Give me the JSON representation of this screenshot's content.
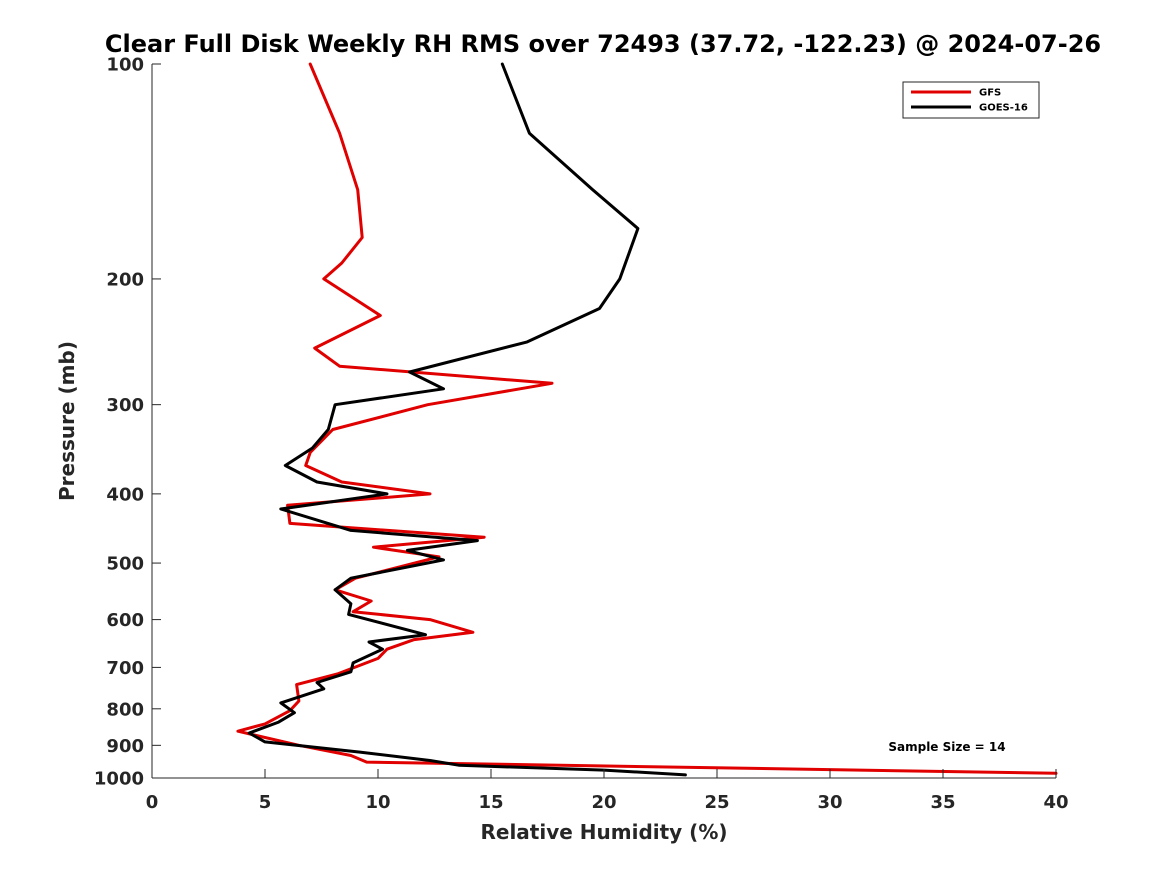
{
  "chart_data": {
    "type": "line",
    "title": "Clear Full Disk Weekly RH RMS over 72493 (37.72, -122.23) @ 2024-07-26",
    "xlabel": "Relative Humidity (%)",
    "ylabel": "Pressure (mb)",
    "xlim": [
      0,
      40
    ],
    "ylim": [
      100,
      1000
    ],
    "y_scale": "log",
    "y_reversed": true,
    "x_ticks": [
      0,
      5,
      10,
      15,
      20,
      25,
      30,
      35,
      40
    ],
    "y_ticks": [
      100,
      200,
      300,
      400,
      500,
      600,
      700,
      800,
      900,
      1000
    ],
    "grid": false,
    "legend_position": "top-right",
    "annotation": "Sample Size = 14",
    "series": [
      {
        "name": "GFS",
        "color": "#e00000",
        "points": [
          [
            7.0,
            100
          ],
          [
            8.3,
            125
          ],
          [
            9.1,
            150
          ],
          [
            9.3,
            175
          ],
          [
            8.4,
            190
          ],
          [
            7.6,
            200
          ],
          [
            10.1,
            225
          ],
          [
            7.2,
            250
          ],
          [
            8.3,
            265
          ],
          [
            17.7,
            280
          ],
          [
            12.2,
            300
          ],
          [
            8.0,
            325
          ],
          [
            7.0,
            350
          ],
          [
            6.8,
            365
          ],
          [
            8.4,
            385
          ],
          [
            12.3,
            400
          ],
          [
            6.0,
            415
          ],
          [
            6.1,
            440
          ],
          [
            14.7,
            460
          ],
          [
            9.8,
            475
          ],
          [
            12.7,
            490
          ],
          [
            9.0,
            525
          ],
          [
            8.1,
            545
          ],
          [
            9.7,
            565
          ],
          [
            8.9,
            585
          ],
          [
            12.3,
            600
          ],
          [
            14.2,
            625
          ],
          [
            11.6,
            640
          ],
          [
            10.4,
            660
          ],
          [
            10.0,
            680
          ],
          [
            8.2,
            715
          ],
          [
            6.4,
            740
          ],
          [
            6.5,
            780
          ],
          [
            6.1,
            805
          ],
          [
            5.0,
            840
          ],
          [
            3.8,
            860
          ],
          [
            6.5,
            900
          ],
          [
            8.8,
            930
          ],
          [
            9.5,
            950
          ],
          [
            40.0,
            985
          ]
        ]
      },
      {
        "name": "GOES-16",
        "color": "#000000",
        "points": [
          [
            15.5,
            100
          ],
          [
            16.7,
            125
          ],
          [
            19.5,
            150
          ],
          [
            21.5,
            170
          ],
          [
            20.7,
            200
          ],
          [
            19.8,
            220
          ],
          [
            16.6,
            245
          ],
          [
            11.4,
            270
          ],
          [
            12.9,
            285
          ],
          [
            8.1,
            300
          ],
          [
            7.8,
            325
          ],
          [
            7.1,
            345
          ],
          [
            5.9,
            365
          ],
          [
            7.3,
            385
          ],
          [
            10.4,
            400
          ],
          [
            5.7,
            420
          ],
          [
            8.8,
            450
          ],
          [
            14.4,
            465
          ],
          [
            11.3,
            480
          ],
          [
            12.9,
            495
          ],
          [
            8.8,
            525
          ],
          [
            8.1,
            545
          ],
          [
            8.8,
            570
          ],
          [
            8.7,
            590
          ],
          [
            12.1,
            630
          ],
          [
            9.6,
            645
          ],
          [
            10.2,
            660
          ],
          [
            8.9,
            690
          ],
          [
            8.8,
            710
          ],
          [
            7.3,
            735
          ],
          [
            7.6,
            750
          ],
          [
            5.7,
            785
          ],
          [
            6.3,
            810
          ],
          [
            5.6,
            835
          ],
          [
            4.3,
            865
          ],
          [
            5.0,
            890
          ],
          [
            9.2,
            920
          ],
          [
            12.3,
            945
          ],
          [
            13.6,
            960
          ],
          [
            20.0,
            975
          ],
          [
            23.6,
            990
          ]
        ]
      }
    ]
  }
}
